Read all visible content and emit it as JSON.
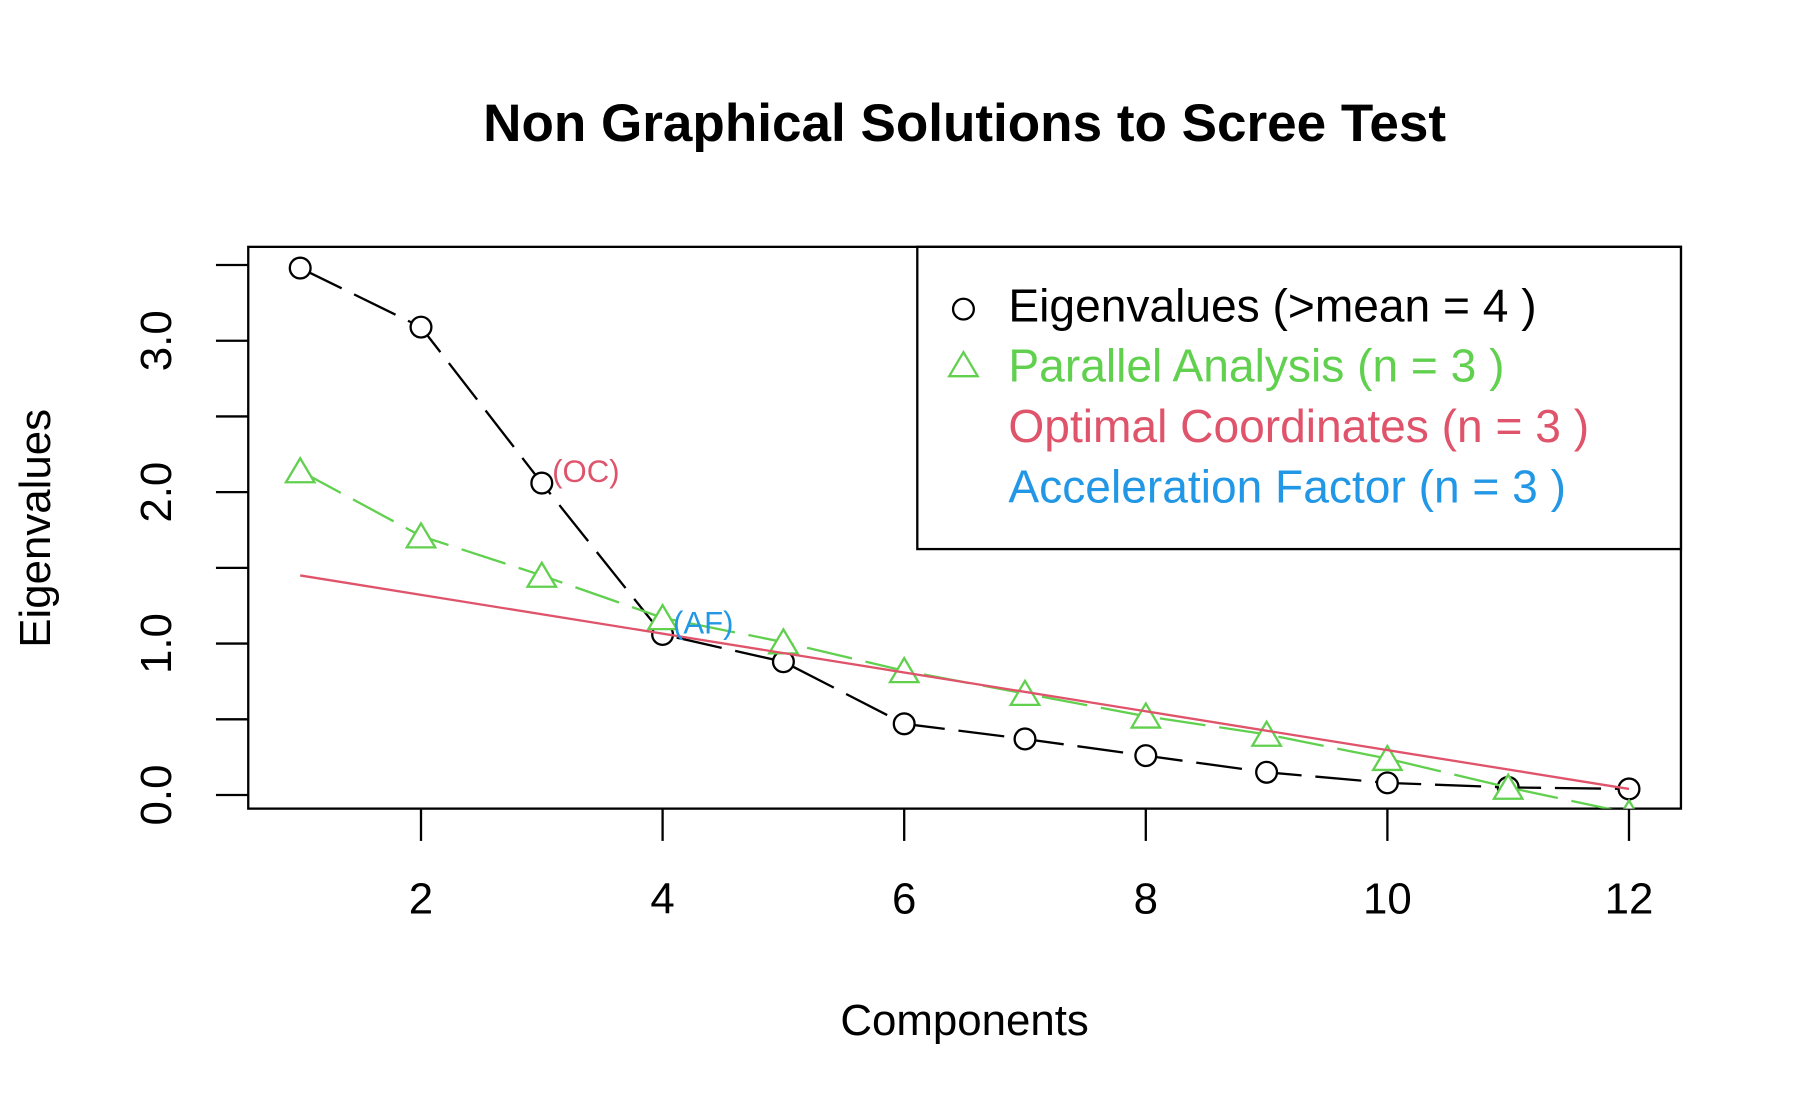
{
  "chart_data": {
    "type": "line",
    "title": "Non Graphical Solutions to Scree Test",
    "xlabel": "Components",
    "ylabel": "Eigenvalues",
    "x": [
      1,
      2,
      3,
      4,
      5,
      6,
      7,
      8,
      9,
      10,
      11,
      12
    ],
    "series": [
      {
        "name": "Eigenvalues (>mean  =  4 )",
        "color": "#000000",
        "marker": "circle",
        "dash": true,
        "values": [
          3.48,
          3.09,
          2.06,
          1.06,
          0.88,
          0.47,
          0.37,
          0.26,
          0.15,
          0.08,
          0.05,
          0.04
        ]
      },
      {
        "name": "Parallel Analysis (n =  3 )",
        "color": "#61d04f",
        "marker": "triangle",
        "dash": true,
        "values": [
          2.14,
          1.71,
          1.45,
          1.17,
          1.01,
          0.82,
          0.67,
          0.52,
          0.4,
          0.24,
          0.05,
          -0.12
        ]
      },
      {
        "name": "Optimal Coordinates (n =  3 )",
        "color": "#df536b",
        "x": [
          1,
          12
        ],
        "values": [
          1.45,
          0.04
        ]
      },
      {
        "name": "Acceleration Factor (n =  3 )",
        "color": "#2297e6"
      }
    ],
    "annotations": [
      {
        "text": "(OC)",
        "x": 3,
        "color": "#df536b"
      },
      {
        "text": "(AF)",
        "x": 4,
        "color": "#2297e6"
      }
    ],
    "xlim": [
      0.57,
      12.43
    ],
    "ylim": [
      -0.09,
      3.62
    ],
    "xticks": [
      2,
      4,
      6,
      8,
      10,
      12
    ],
    "yticks": [
      {
        "value": 0,
        "label": "0.0"
      },
      {
        "value": 1,
        "label": "1.0"
      },
      {
        "value": 2,
        "label": "2.0"
      },
      {
        "value": 3,
        "label": "3.0"
      }
    ],
    "yticks_minor": [
      0.5,
      1.5,
      2.5,
      3.5
    ],
    "legend": "top-right"
  }
}
